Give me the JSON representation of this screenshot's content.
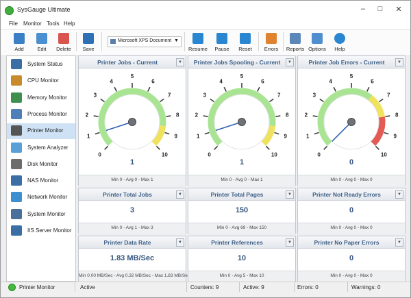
{
  "window": {
    "title": "SysGauge Ultimate"
  },
  "menu": [
    "File",
    "Monitor",
    "Tools",
    "Help"
  ],
  "toolbar": {
    "buttons": [
      "Add",
      "Edit",
      "Delete",
      "Save",
      "Resume",
      "Pause",
      "Reset",
      "Errors",
      "Reports",
      "Options",
      "Help"
    ],
    "dropdown": "Microsoft XPS Document Writ"
  },
  "sidebar": {
    "items": [
      "System Status",
      "CPU Monitor",
      "Memory Monitor",
      "Process Monitor",
      "Printer Monitor",
      "System Analyzer",
      "Disk Monitor",
      "NAS Monitor",
      "Network Monitor",
      "System Monitor",
      "IIS Server Monitor"
    ],
    "selected": 4
  },
  "gauges": [
    {
      "title": "Printer Jobs - Current",
      "value": 1,
      "ticks": [
        0,
        1,
        2,
        3,
        4,
        5,
        6,
        7,
        8,
        9,
        10
      ],
      "summary": "Min 0 - Avg 0 - Max 1",
      "zones": [
        {
          "from": 0,
          "to": 8.6,
          "color": "#a9e493"
        },
        {
          "from": 8.6,
          "to": 10,
          "color": "#efe25e"
        }
      ]
    },
    {
      "title": "Printer Jobs Spooling - Current",
      "value": 1,
      "ticks": [
        0,
        1,
        2,
        3,
        4,
        5,
        6,
        7,
        8,
        9,
        10
      ],
      "summary": "Min 0 - Avg 0 - Max 1",
      "zones": [
        {
          "from": 0,
          "to": 8.6,
          "color": "#a9e493"
        },
        {
          "from": 8.6,
          "to": 10,
          "color": "#efe25e"
        }
      ]
    },
    {
      "title": "Printer Job Errors - Current",
      "value": 0,
      "ticks": [
        0,
        1,
        2,
        3,
        4,
        5,
        6,
        7,
        8,
        9,
        10
      ],
      "summary": "Min 0 - Avg 0 - Max 0",
      "zones": [
        {
          "from": 0,
          "to": 6.4,
          "color": "#a9e493"
        },
        {
          "from": 6.4,
          "to": 8,
          "color": "#efe25e"
        },
        {
          "from": 8,
          "to": 10,
          "color": "#e45a55"
        }
      ]
    }
  ],
  "counters": [
    {
      "title": "Printer Total Jobs",
      "value": 3,
      "summary": "Min 0 - Avg 1 - Max 3"
    },
    {
      "title": "Printer Total Pages",
      "value": 150,
      "summary": "Min 0 - Avg 69 - Max 150"
    },
    {
      "title": "Printer Not Ready Errors",
      "value": 0,
      "summary": "Min 0 - Avg 0 - Max 0"
    },
    {
      "title": "Printer Data Rate",
      "value": "1.83 MB/Sec",
      "summary": "Min 0.00 MB/Sec - Avg 0.32 MB/Sec - Max 1.83 MB/Sec"
    },
    {
      "title": "Printer References",
      "value": 10,
      "summary": "Min 0 - Avg 5 - Max 10"
    },
    {
      "title": "Printer No Paper Errors",
      "value": 0,
      "summary": "Min 0 - Avg 0 - Max 0"
    }
  ],
  "status": [
    "Printer Monitor",
    "Active",
    "Counters: 9",
    "Active: 9",
    "Errors: 0",
    "Warnings: 0"
  ]
}
